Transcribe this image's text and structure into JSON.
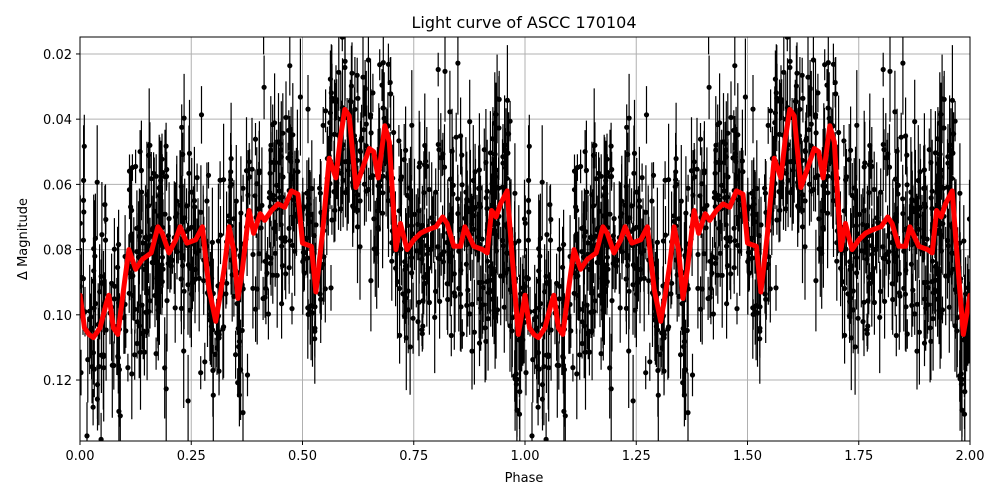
{
  "chart_data": {
    "type": "scatter",
    "title": "Light curve of ASCC 170104",
    "xlabel": "Phase",
    "ylabel": "Δ Magnitude",
    "xlim": [
      0.0,
      2.0
    ],
    "ylim": [
      0.1387,
      0.0148
    ],
    "y_inverted": true,
    "grid": true,
    "legend": null,
    "x_ticks": [
      "0.00",
      "0.25",
      "0.50",
      "0.75",
      "1.00",
      "1.25",
      "1.50",
      "1.75",
      "2.00"
    ],
    "x_tick_values": [
      0.0,
      0.25,
      0.5,
      0.75,
      1.0,
      1.25,
      1.5,
      1.75,
      2.0
    ],
    "y_ticks": [
      "0.02",
      "0.04",
      "0.06",
      "0.08",
      "0.10",
      "0.12"
    ],
    "y_tick_values": [
      0.02,
      0.04,
      0.06,
      0.08,
      0.1,
      0.12
    ],
    "series": [
      {
        "name": "observations",
        "kind": "errorbar-scatter",
        "color": "#000000",
        "description": "Dense photometric points with vertical error bars, phase-folded and repeated over two cycles; scatter roughly ±0.03 mag around the binned curve"
      },
      {
        "name": "binned",
        "kind": "line",
        "color": "#ff0000",
        "linewidth": 5,
        "x": [
          0.0,
          0.01,
          0.02,
          0.03,
          0.045,
          0.06,
          0.065,
          0.075,
          0.085,
          0.1,
          0.11,
          0.125,
          0.14,
          0.16,
          0.175,
          0.185,
          0.2,
          0.215,
          0.225,
          0.24,
          0.26,
          0.275,
          0.29,
          0.305,
          0.315,
          0.325,
          0.335,
          0.345,
          0.355,
          0.365,
          0.38,
          0.39,
          0.405,
          0.415,
          0.43,
          0.445,
          0.46,
          0.475,
          0.49,
          0.5,
          0.52,
          0.53,
          0.545,
          0.56,
          0.575,
          0.585,
          0.595,
          0.605,
          0.62,
          0.635,
          0.65,
          0.66,
          0.67,
          0.685,
          0.695,
          0.71,
          0.72,
          0.735,
          0.75,
          0.765,
          0.78,
          0.8,
          0.815,
          0.825,
          0.84,
          0.855,
          0.865,
          0.885,
          0.905,
          0.915,
          0.925,
          0.935,
          0.945,
          0.96,
          0.97,
          0.985,
          1.0
        ],
        "values": [
          0.094,
          0.104,
          0.106,
          0.107,
          0.104,
          0.096,
          0.094,
          0.104,
          0.106,
          0.09,
          0.08,
          0.086,
          0.083,
          0.081,
          0.073,
          0.075,
          0.081,
          0.077,
          0.073,
          0.078,
          0.077,
          0.073,
          0.092,
          0.102,
          0.094,
          0.085,
          0.073,
          0.08,
          0.095,
          0.086,
          0.068,
          0.075,
          0.069,
          0.071,
          0.068,
          0.066,
          0.067,
          0.062,
          0.063,
          0.078,
          0.079,
          0.093,
          0.075,
          0.052,
          0.058,
          0.046,
          0.037,
          0.039,
          0.061,
          0.055,
          0.049,
          0.05,
          0.058,
          0.042,
          0.047,
          0.08,
          0.072,
          0.08,
          0.077,
          0.075,
          0.074,
          0.073,
          0.07,
          0.072,
          0.079,
          0.079,
          0.073,
          0.079,
          0.08,
          0.081,
          0.068,
          0.07,
          0.066,
          0.062,
          0.08,
          0.106,
          0.094
        ],
        "repeat_period": 1.0,
        "cycles": 2
      }
    ]
  },
  "colors": {
    "points": "#000000",
    "curve": "#ff0000",
    "grid": "#b0b0b0",
    "frame": "#000000"
  }
}
